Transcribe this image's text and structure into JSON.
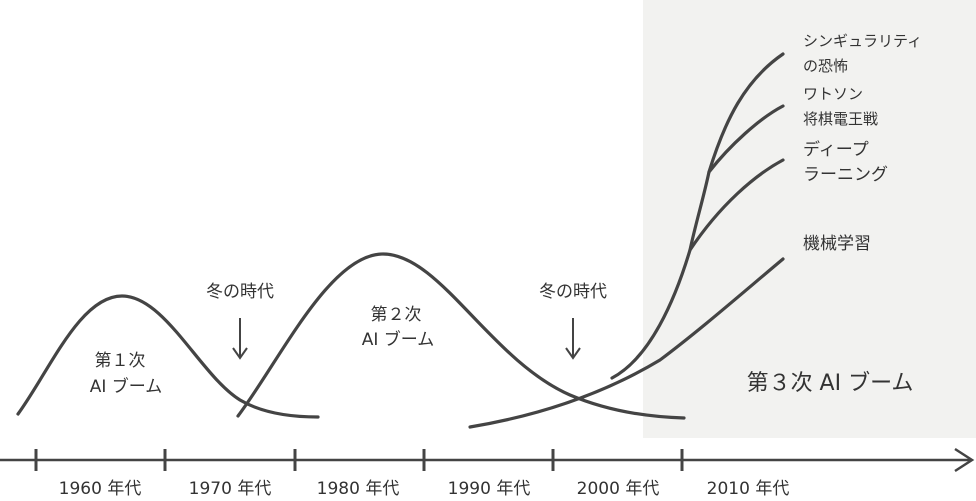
{
  "colors": {
    "line": "#444444",
    "text": "#333333",
    "highlight_bg": "#f2f2f0"
  },
  "timeline": {
    "ticks": [
      "1960 年代",
      "1970 年代",
      "1980 年代",
      "1990 年代",
      "2000 年代",
      "2010 年代"
    ]
  },
  "booms": {
    "first": {
      "line1": "第１次",
      "line2": "AI ブーム"
    },
    "second": {
      "line1": "第２次",
      "line2": "AI ブーム"
    },
    "third": {
      "label": "第３次 AI ブーム"
    }
  },
  "winters": {
    "first": "冬の時代",
    "second": "冬の時代"
  },
  "tech": {
    "singularity": {
      "line1": "シンギュラリティ",
      "line2": "の恐怖"
    },
    "watson": {
      "line1": "ワトソン",
      "line2": "将棋電王戦"
    },
    "deep": {
      "line1": "ディープ",
      "line2": "ラーニング"
    },
    "ml": {
      "line1": "機械学習"
    }
  }
}
